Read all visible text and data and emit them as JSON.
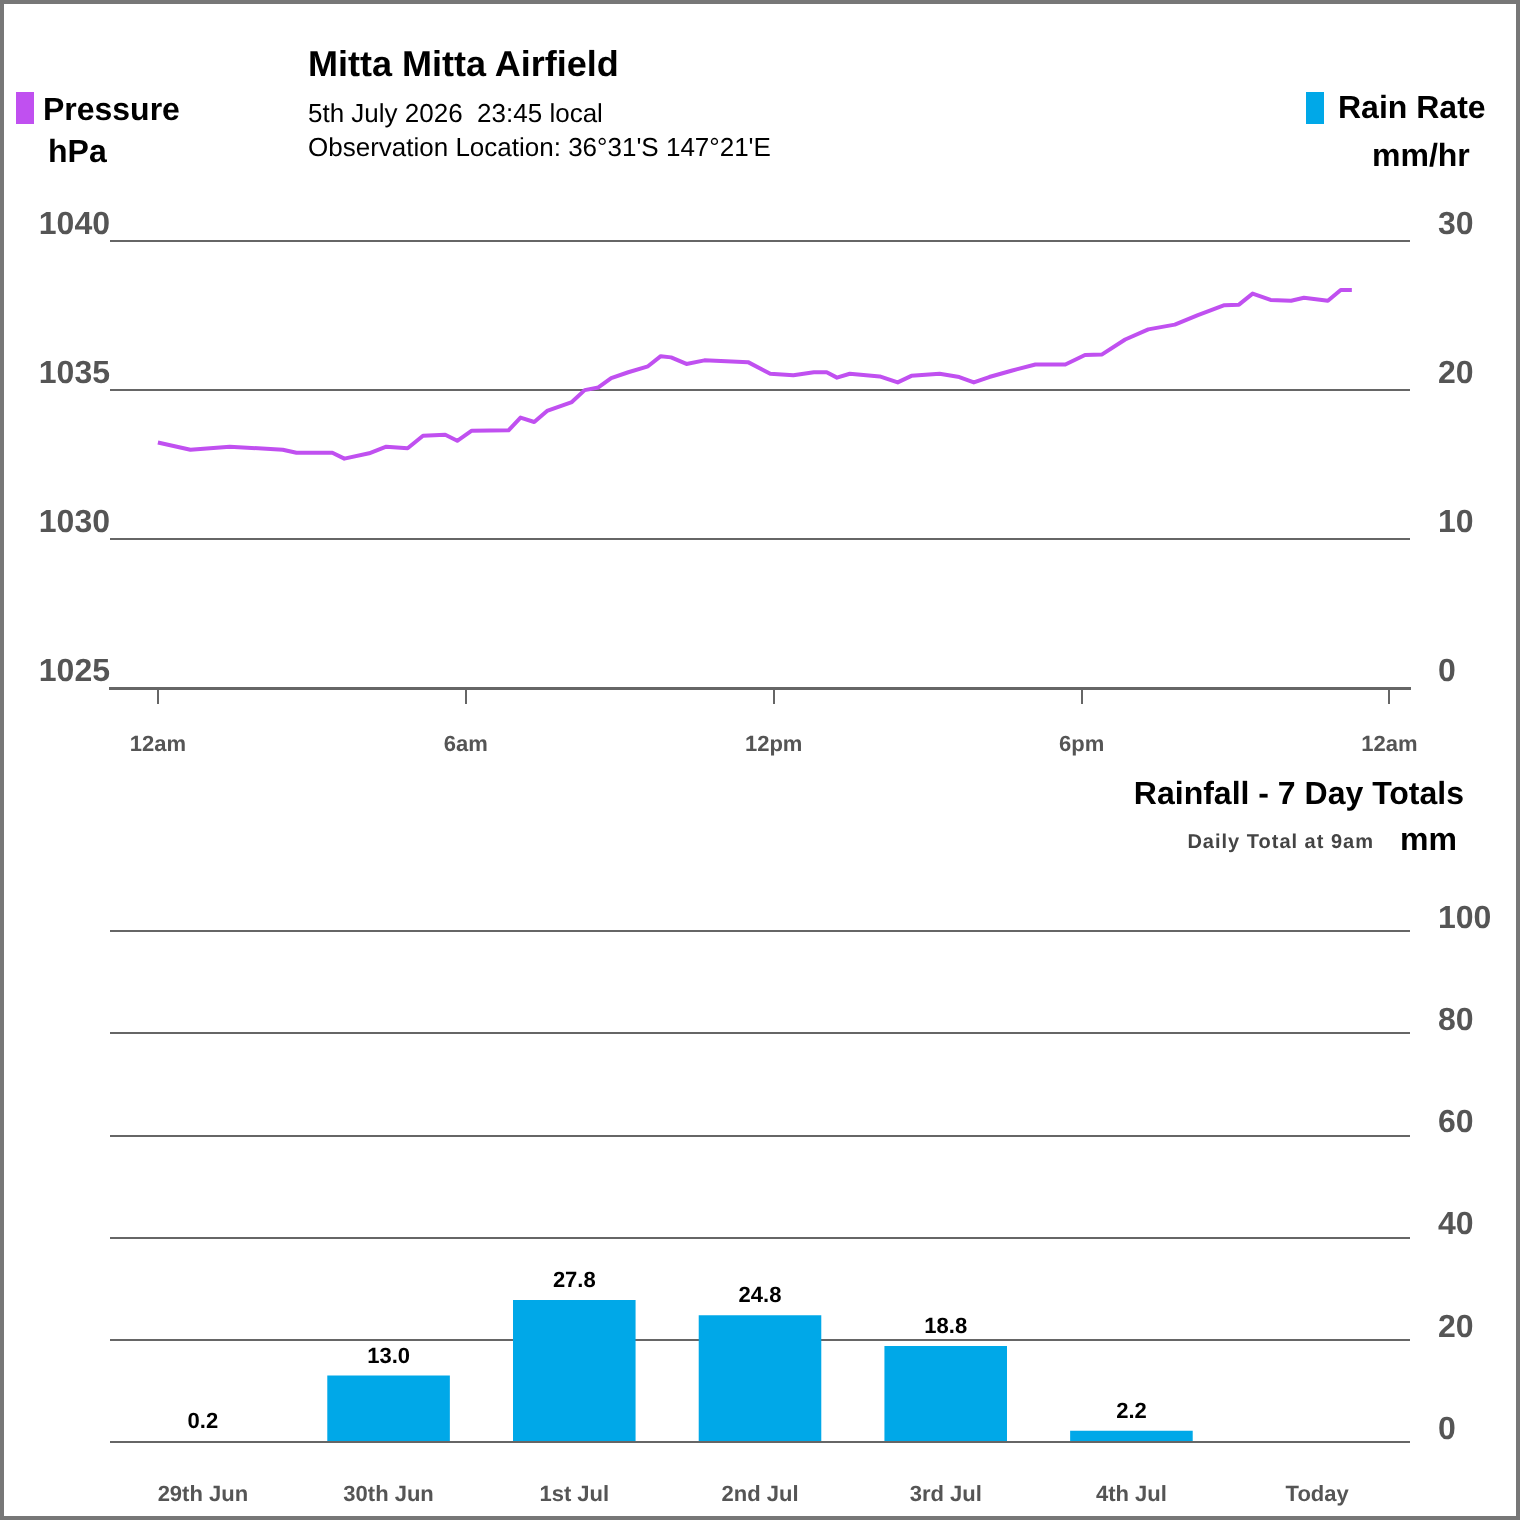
{
  "chart_data": [
    {
      "type": "line",
      "title": "Mitta Mitta Airfield",
      "subtitle": "5th July 2026  23:45 local",
      "annotations": [
        "Observation Location: 36°31'S 147°21'E"
      ],
      "ylabel": "hPa",
      "y2label": "Rain Rate mm/hr",
      "legend": "top left",
      "grid": "y",
      "marker": "none",
      "x": [
        "2026-07-05T00:00",
        "2026-07-05T00:38",
        "2026-07-05T01:24",
        "2026-07-05T02:26",
        "2026-07-05T02:42",
        "2026-07-05T03:24",
        "2026-07-05T03:38",
        "2026-07-05T04:07",
        "2026-07-05T04:27",
        "2026-07-05T04:52",
        "2026-07-05T05:10",
        "2026-07-05T05:36",
        "2026-07-05T05:50",
        "2026-07-05T06:07",
        "2026-07-05T06:50",
        "2026-07-05T07:04",
        "2026-07-05T07:20",
        "2026-07-05T07:35",
        "2026-07-05T08:04",
        "2026-07-05T08:19",
        "2026-07-05T08:35",
        "2026-07-05T08:50",
        "2026-07-05T09:10",
        "2026-07-05T09:33",
        "2026-07-05T09:48",
        "2026-07-05T10:00",
        "2026-07-05T10:18",
        "2026-07-05T10:39",
        "2026-07-05T11:30",
        "2026-07-05T11:56",
        "2026-07-05T12:23",
        "2026-07-05T12:47",
        "2026-07-05T13:02",
        "2026-07-05T13:14",
        "2026-07-05T13:29",
        "2026-07-05T14:04",
        "2026-07-05T14:25",
        "2026-07-05T14:41",
        "2026-07-05T15:14",
        "2026-07-05T15:37",
        "2026-07-05T15:54",
        "2026-07-05T16:12",
        "2026-07-05T16:39",
        "2026-07-05T17:06",
        "2026-07-05T17:41",
        "2026-07-05T18:04",
        "2026-07-05T18:24",
        "2026-07-05T18:51",
        "2026-07-05T19:18",
        "2026-07-05T19:49",
        "2026-07-05T20:16",
        "2026-07-05T20:47",
        "2026-07-05T21:04",
        "2026-07-05T21:20",
        "2026-07-05T21:41",
        "2026-07-05T22:05",
        "2026-07-05T22:20",
        "2026-07-05T22:48",
        "2026-07-05T23:03",
        "2026-07-05T23:16"
      ],
      "series": [
        {
          "name": "Pressure",
          "color": "#c050f0",
          "values": [
            1033.24,
            1033.0,
            1033.1,
            1033.0,
            1032.9,
            1032.9,
            1032.7,
            1032.88,
            1033.1,
            1033.05,
            1033.47,
            1033.5,
            1033.3,
            1033.64,
            1033.65,
            1034.08,
            1033.93,
            1034.3,
            1034.6,
            1035.0,
            1035.09,
            1035.4,
            1035.6,
            1035.8,
            1036.14,
            1036.1,
            1035.88,
            1036.0,
            1035.94,
            1035.55,
            1035.5,
            1035.6,
            1035.6,
            1035.42,
            1035.55,
            1035.46,
            1035.26,
            1035.48,
            1035.55,
            1035.44,
            1035.26,
            1035.44,
            1035.66,
            1035.86,
            1035.86,
            1036.18,
            1036.2,
            1036.7,
            1037.04,
            1037.2,
            1037.52,
            1037.85,
            1037.87,
            1038.24,
            1038.03,
            1038.0,
            1038.1,
            1038.0,
            1038.36,
            1038.36
          ]
        }
      ],
      "xlim": [
        "2026-07-04T23:04",
        "2026-07-06T00:24"
      ],
      "xticks": [
        {
          "value": "2026-07-05T00:00",
          "label": "12am"
        },
        {
          "value": "2026-07-05T06:00",
          "label": "6am"
        },
        {
          "value": "2026-07-05T12:00",
          "label": "12pm"
        },
        {
          "value": "2026-07-05T18:00",
          "label": "6pm"
        },
        {
          "value": "2026-07-06T00:00",
          "label": "12am"
        }
      ],
      "ylim": [
        1025,
        1040
      ],
      "yticks": [
        1025,
        1030,
        1035,
        1040
      ],
      "y2lim": [
        0,
        30
      ],
      "y2ticks": [
        0,
        10,
        20,
        30
      ]
    },
    {
      "type": "bar",
      "title": "Rainfall - 7 Day Totals",
      "subtitle": "Daily Total at 9am",
      "y2label": "mm",
      "grid": "y",
      "data_labels": true,
      "categories": [
        "29th Jun",
        "30th Jun",
        "1st Jul",
        "2nd Jul",
        "3rd Jul",
        "4th Jul",
        "Today"
      ],
      "series": [
        {
          "color": "#00a8e8",
          "axis": "y2",
          "values": [
            0.2,
            13.0,
            27.8,
            24.8,
            18.8,
            2.2,
            null
          ],
          "value_labels": [
            "0.2",
            "13.0",
            "27.8",
            "24.8",
            "18.8",
            "2.2",
            null
          ]
        }
      ],
      "y2lim": [
        0,
        100
      ],
      "y2ticks": [
        0,
        20,
        40,
        60,
        80,
        100
      ]
    }
  ]
}
